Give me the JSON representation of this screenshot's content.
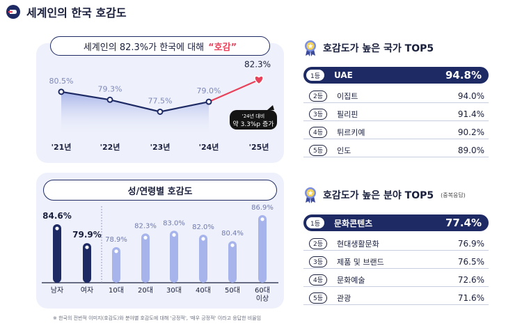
{
  "header": {
    "title": "세계인의 한국 호감도"
  },
  "trend": {
    "title_prefix": "세계인의 82.3%가 한국에 대해",
    "title_highlight": "“호감”",
    "callout_line1": "'24년 대비",
    "callout_line2": "약 3.3%p 증가"
  },
  "demographics": {
    "title": "성/연령별 호감도"
  },
  "countries": {
    "title": "호감도가 높은 국가 TOP5",
    "items": [
      {
        "rank": "1등",
        "name": "UAE",
        "value": "94.8%"
      },
      {
        "rank": "2등",
        "name": "이집트",
        "value": "94.0%"
      },
      {
        "rank": "3등",
        "name": "필리핀",
        "value": "91.4%"
      },
      {
        "rank": "4등",
        "name": "튀르키예",
        "value": "90.2%"
      },
      {
        "rank": "5등",
        "name": "인도",
        "value": "89.0%"
      }
    ]
  },
  "fields": {
    "title": "호감도가 높은 분야 TOP5",
    "note": "(중복응답)",
    "items": [
      {
        "rank": "1등",
        "name": "문화콘텐츠",
        "value": "77.4%"
      },
      {
        "rank": "2등",
        "name": "현대생활문화",
        "value": "76.9%"
      },
      {
        "rank": "3등",
        "name": "제품 및 브랜드",
        "value": "76.5%"
      },
      {
        "rank": "4등",
        "name": "문화예술",
        "value": "72.6%"
      },
      {
        "rank": "5등",
        "name": "관광",
        "value": "71.6%"
      }
    ]
  },
  "footnote": "※ 한국의 전반적 이미지(호감도)와 분야별 호감도에 대해 '긍정적', '매우 긍정적' 이라고 응답한 비율임",
  "colors": {
    "navy": "#1e2a64",
    "accent": "#e8425a",
    "light_bar": "#a7b4ec",
    "panel": "#eef1fb"
  },
  "chart_data": [
    {
      "type": "line",
      "title": "세계인의 82.3%가 한국에 대해 “호감”",
      "categories": [
        "'21년",
        "'22년",
        "'23년",
        "'24년",
        "'25년"
      ],
      "values": [
        80.5,
        79.3,
        77.5,
        79.0,
        82.3
      ],
      "labels": [
        "80.5%",
        "79.3%",
        "77.5%",
        "79.0%",
        "82.3%"
      ],
      "unit": "%",
      "ylim": [
        70,
        90
      ]
    },
    {
      "type": "bar",
      "title": "성/연령별 호감도",
      "categories": [
        "남자",
        "여자",
        "10대",
        "20대",
        "30대",
        "40대",
        "50대",
        "60대 이상"
      ],
      "values": [
        84.6,
        79.9,
        78.9,
        82.3,
        83.0,
        82.0,
        80.4,
        86.9
      ],
      "labels": [
        "84.6%",
        "79.9%",
        "78.9%",
        "82.3%",
        "83.0%",
        "82.0%",
        "80.4%",
        "86.9%"
      ],
      "groups": [
        "gender",
        "gender",
        "age",
        "age",
        "age",
        "age",
        "age",
        "age"
      ],
      "unit": "%",
      "ylim": [
        70,
        90
      ]
    }
  ]
}
